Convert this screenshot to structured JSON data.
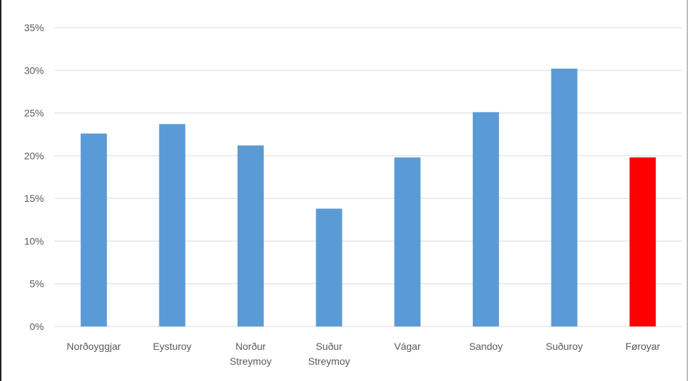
{
  "chart_data": {
    "type": "bar",
    "categories": [
      [
        "Norðoyggjar"
      ],
      [
        "Eysturoy"
      ],
      [
        "Norður",
        "Streymoy"
      ],
      [
        "Suður",
        "Streymoy"
      ],
      [
        "Vágar"
      ],
      [
        "Sandoy"
      ],
      [
        "Suðuroy"
      ],
      [
        "Føroyar"
      ]
    ],
    "values": [
      22.6,
      23.7,
      21.2,
      13.8,
      19.8,
      25.1,
      30.2,
      19.8
    ],
    "value_unit": "%",
    "yticks": [
      "0%",
      "5%",
      "10%",
      "15%",
      "20%",
      "25%",
      "30%",
      "35%"
    ],
    "ylim": [
      0,
      35
    ],
    "grid": true,
    "colors": {
      "bar": "#5b9bd5",
      "highlight": "#ff0000",
      "highlight_index": 7
    }
  }
}
